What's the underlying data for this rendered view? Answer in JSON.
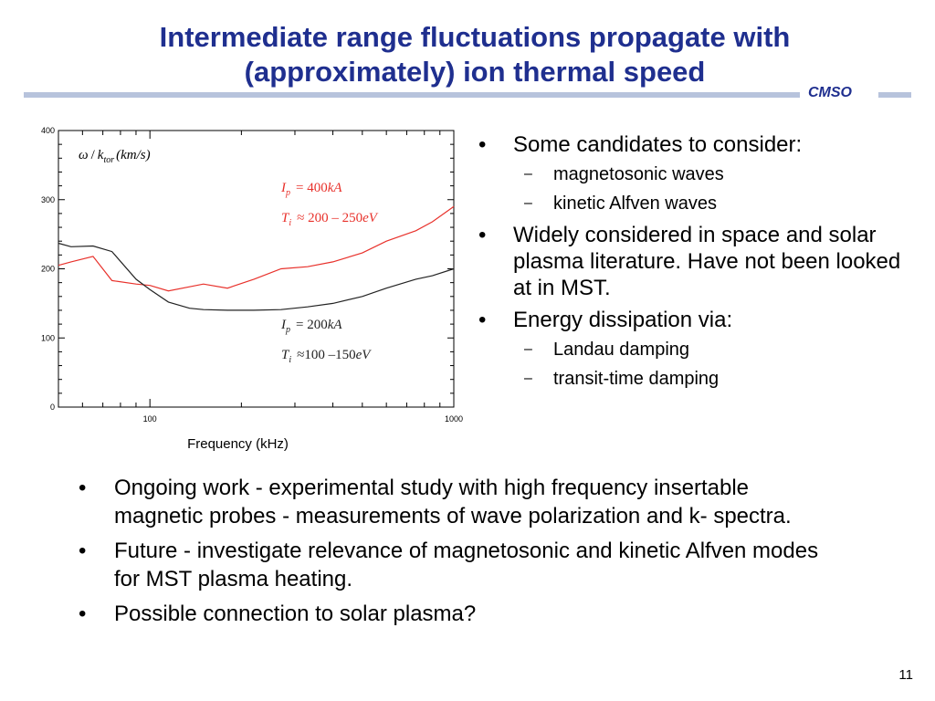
{
  "slide": {
    "title_line1": "Intermediate range fluctuations propagate with",
    "title_line2": "(approximately) ion thermal speed",
    "brand": "CMSO",
    "page_number": "11"
  },
  "right_bullets": [
    {
      "text": "Some candidates to consider:",
      "subs": [
        "magnetosonic waves",
        "kinetic Alfven waves"
      ]
    },
    {
      "text": "Widely considered in space and solar plasma literature. Have not been looked at in MST.",
      "subs": []
    },
    {
      "text": "Energy dissipation via:",
      "subs": [
        "Landau damping",
        "transit-time damping"
      ]
    }
  ],
  "bottom_bullets": [
    "Ongoing work - experimental study with high frequency insertable magnetic probes - measurements of wave polarization and k- spectra.",
    "Future - investigate relevance of magnetosonic and kinetic Alfven modes for MST plasma heating.",
    "Possible connection to solar plasma?"
  ],
  "chart_data": {
    "type": "line",
    "xlabel": "Frequency (kHz)",
    "ylabel_parts": {
      "omega": "ω",
      "slash": "/",
      "k": "k",
      "k_sub": "tor",
      "units": "(km/s)"
    },
    "x_scale": "log",
    "xlim": [
      50,
      1000
    ],
    "ylim": [
      0,
      400
    ],
    "x_ticks": [
      100,
      1000
    ],
    "y_ticks": [
      0,
      100,
      200,
      300,
      400
    ],
    "grid": false,
    "series": [
      {
        "color": "#e8312b",
        "points": [
          [
            50,
            205
          ],
          [
            55,
            210
          ],
          [
            65,
            218
          ],
          [
            75,
            183
          ],
          [
            90,
            178
          ],
          [
            100,
            176
          ],
          [
            115,
            168
          ],
          [
            135,
            174
          ],
          [
            150,
            178
          ],
          [
            180,
            172
          ],
          [
            220,
            185
          ],
          [
            270,
            200
          ],
          [
            330,
            203
          ],
          [
            400,
            210
          ],
          [
            500,
            223
          ],
          [
            600,
            240
          ],
          [
            750,
            255
          ],
          [
            850,
            268
          ],
          [
            1000,
            290
          ]
        ],
        "label_lines": [
          {
            "var": "I",
            "sub": "p",
            "rel": "= 400",
            "unit": "kA"
          },
          {
            "var": "T",
            "sub": "i",
            "rel": "≈ 200 – 250",
            "unit": "eV"
          }
        ]
      },
      {
        "color": "#222222",
        "points": [
          [
            50,
            237
          ],
          [
            55,
            232
          ],
          [
            65,
            233
          ],
          [
            75,
            225
          ],
          [
            90,
            185
          ],
          [
            100,
            170
          ],
          [
            115,
            152
          ],
          [
            135,
            143
          ],
          [
            150,
            141
          ],
          [
            180,
            140
          ],
          [
            220,
            140
          ],
          [
            270,
            141
          ],
          [
            330,
            145
          ],
          [
            400,
            150
          ],
          [
            500,
            160
          ],
          [
            600,
            172
          ],
          [
            750,
            185
          ],
          [
            850,
            190
          ],
          [
            1000,
            200
          ]
        ],
        "label_lines": [
          {
            "var": "I",
            "sub": "p",
            "rel": "= 200",
            "unit": "kA"
          },
          {
            "var": "T",
            "sub": "i",
            "rel": "≈100 –150",
            "unit": "eV"
          }
        ]
      }
    ]
  }
}
